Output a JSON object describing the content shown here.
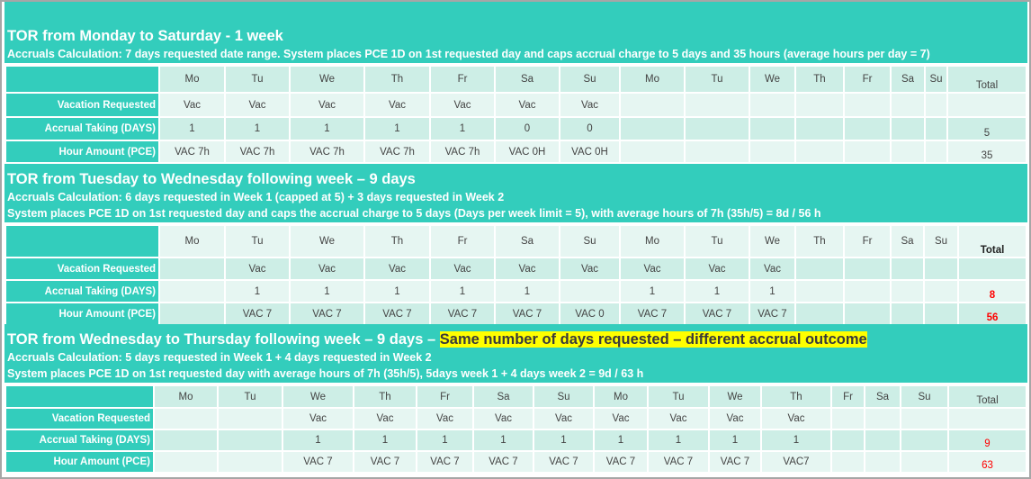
{
  "sections": [
    {
      "title": "TOR from Monday to Saturday - 1 week",
      "subtitles": [
        "Accruals Calculation: 7 days requested date range. System places PCE 1D on 1st requested day and caps accrual charge to 5 days and 35 hours (average hours per day = 7)"
      ],
      "days": [
        "Mo",
        "Tu",
        "We",
        "Th",
        "Fr",
        "Sa",
        "Su",
        "Mo",
        "Tu",
        "We",
        "Th",
        "Fr",
        "Sa",
        "Su"
      ],
      "total_label": "Total",
      "rows": [
        {
          "label": "Vacation Requested",
          "cells": [
            "Vac",
            "Vac",
            "Vac",
            "Vac",
            "Vac",
            "Vac",
            "Vac",
            "",
            "",
            "",
            "",
            "",
            "",
            ""
          ],
          "total": ""
        },
        {
          "label": "Accrual Taking (DAYS)",
          "cells": [
            "1",
            "1",
            "1",
            "1",
            "1",
            "0",
            "0",
            "",
            "",
            "",
            "",
            "",
            "",
            ""
          ],
          "total": "5"
        },
        {
          "label": "Hour Amount (PCE)",
          "cells": [
            "VAC 7h",
            "VAC 7h",
            "VAC 7h",
            "VAC 7h",
            "VAC 7h",
            "VAC 0H",
            "VAC 0H",
            "",
            "",
            "",
            "",
            "",
            "",
            ""
          ],
          "total": "35"
        }
      ]
    },
    {
      "title": "TOR from Tuesday to Wednesday following week – 9 days",
      "subtitles": [
        "Accruals Calculation: 6 days requested in Week 1 (capped at 5) + 3 days requested in Week 2",
        "System places PCE 1D on 1st requested day and caps the accrual charge to 5 days (Days per week limit = 5), with average hours of 7h (35h/5) = 8d / 56 h"
      ],
      "days": [
        "Mo",
        "Tu",
        "We",
        "Th",
        "Fr",
        "Sa",
        "Su",
        "Mo",
        "Tu",
        "We",
        "Th",
        "Fr",
        "Sa",
        "Su"
      ],
      "total_label": "Total",
      "rows": [
        {
          "label": "Vacation Requested",
          "cells": [
            "",
            "Vac",
            "Vac",
            "Vac",
            "Vac",
            "Vac",
            "Vac",
            "Vac",
            "Vac",
            "Vac",
            "",
            "",
            "",
            ""
          ],
          "total": ""
        },
        {
          "label": "Accrual Taking (DAYS)",
          "cells": [
            "",
            "1",
            "1",
            "1",
            "1",
            "1",
            "",
            "1",
            "1",
            "1",
            "",
            "",
            "",
            ""
          ],
          "total": "8"
        },
        {
          "label": "Hour Amount (PCE)",
          "cells": [
            "",
            "VAC 7",
            "VAC 7",
            "VAC 7",
            "VAC 7",
            "VAC 7",
            "VAC 0",
            "VAC 7",
            "VAC 7",
            "VAC 7",
            "",
            "",
            "",
            ""
          ],
          "total": "56"
        }
      ]
    },
    {
      "title": "TOR from Wednesday to Thursday following week – 9 days – ",
      "highlight": "Same number of days requested – different accrual outcome",
      "subtitles": [
        "Accruals Calculation: 5 days requested in Week 1 + 4 days requested in Week 2",
        "System places PCE 1D on 1st requested day with average hours of 7h (35h/5), 5days week 1 + 4 days week 2 = 9d / 63 h"
      ],
      "days": [
        "Mo",
        "Tu",
        "We",
        "Th",
        "Fr",
        "Sa",
        "Su",
        "Mo",
        "Tu",
        "We",
        "Th",
        "Fr",
        "Sa",
        "Su"
      ],
      "total_label": "Total",
      "rows": [
        {
          "label": "Vacation Requested",
          "cells": [
            "",
            "",
            "Vac",
            "Vac",
            "Vac",
            "Vac",
            "Vac",
            "Vac",
            "Vac",
            "Vac",
            "Vac",
            "",
            "",
            ""
          ],
          "total": ""
        },
        {
          "label": "Accrual Taking (DAYS)",
          "cells": [
            "",
            "",
            "1",
            "1",
            "1",
            "1",
            "1",
            "1",
            "1",
            "1",
            "1",
            "",
            "",
            ""
          ],
          "total": "9"
        },
        {
          "label": "Hour Amount (PCE)",
          "cells": [
            "",
            "",
            "VAC 7",
            "VAC 7",
            "VAC 7",
            "VAC 7",
            "VAC 7",
            "VAC 7",
            "VAC 7",
            "VAC 7",
            "VAC7",
            "",
            "",
            ""
          ],
          "total": "63"
        }
      ]
    }
  ],
  "colors": {
    "teal": "#33cdbc",
    "highlight": "#ffff00",
    "total_red": "#ff0000"
  }
}
